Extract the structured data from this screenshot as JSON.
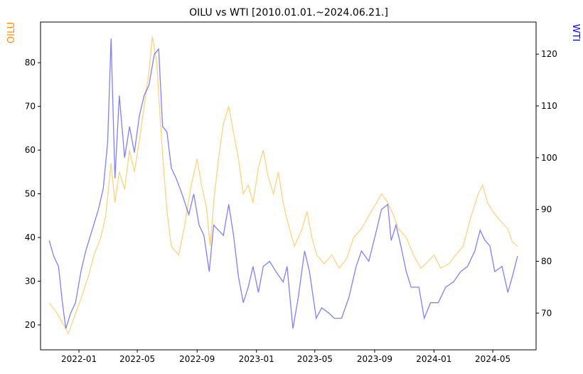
{
  "chart_data": {
    "type": "line",
    "title": "OILU vs WTI [2010.01.01.~2024.06.21.]",
    "left_axis": {
      "label": "OILU",
      "color": "#ff8c00",
      "ylim": [
        14.3,
        89.3
      ],
      "ticks": [
        20,
        30,
        40,
        50,
        60,
        70,
        80
      ]
    },
    "right_axis": {
      "label": "WTI",
      "color": "#0000ff",
      "ylim": [
        62.9,
        126.2
      ],
      "ticks": [
        70,
        80,
        90,
        100,
        110,
        120
      ]
    },
    "x_axis": {
      "xlim": [
        "2021-10-14",
        "2024-07-29"
      ],
      "ticks": [
        {
          "date": "2022-01-01",
          "label": "2022-01"
        },
        {
          "date": "2022-05-01",
          "label": "2022-05"
        },
        {
          "date": "2022-09-01",
          "label": "2022-09"
        },
        {
          "date": "2023-01-01",
          "label": "2023-01"
        },
        {
          "date": "2023-05-01",
          "label": "2023-05"
        },
        {
          "date": "2023-09-01",
          "label": "2023-09"
        },
        {
          "date": "2024-01-01",
          "label": "2024-01"
        },
        {
          "date": "2024-05-01",
          "label": "2024-05"
        }
      ]
    },
    "grid": false,
    "series": [
      {
        "name": "OILU",
        "axis": "left",
        "color": "#ffa500",
        "points": [
          [
            "2021-11-01",
            25
          ],
          [
            "2021-11-15",
            23
          ],
          [
            "2021-12-01",
            20
          ],
          [
            "2021-12-10",
            18
          ],
          [
            "2021-12-20",
            21
          ],
          [
            "2022-01-05",
            26
          ],
          [
            "2022-01-20",
            31
          ],
          [
            "2022-02-01",
            36
          ],
          [
            "2022-02-15",
            40
          ],
          [
            "2022-02-25",
            45
          ],
          [
            "2022-03-08",
            57
          ],
          [
            "2022-03-16",
            48
          ],
          [
            "2022-03-25",
            55
          ],
          [
            "2022-04-05",
            51
          ],
          [
            "2022-04-15",
            60
          ],
          [
            "2022-04-25",
            55
          ],
          [
            "2022-05-05",
            62
          ],
          [
            "2022-05-15",
            70
          ],
          [
            "2022-05-25",
            78
          ],
          [
            "2022-06-01",
            86
          ],
          [
            "2022-06-10",
            80
          ],
          [
            "2022-06-20",
            62
          ],
          [
            "2022-07-01",
            46
          ],
          [
            "2022-07-10",
            38
          ],
          [
            "2022-07-25",
            36
          ],
          [
            "2022-08-05",
            42
          ],
          [
            "2022-08-20",
            52
          ],
          [
            "2022-09-01",
            58
          ],
          [
            "2022-09-10",
            52
          ],
          [
            "2022-09-20",
            47
          ],
          [
            "2022-09-28",
            38
          ],
          [
            "2022-10-05",
            48
          ],
          [
            "2022-10-15",
            58
          ],
          [
            "2022-10-25",
            66
          ],
          [
            "2022-11-05",
            70
          ],
          [
            "2022-11-15",
            64
          ],
          [
            "2022-11-25",
            58
          ],
          [
            "2022-12-05",
            50
          ],
          [
            "2022-12-15",
            52
          ],
          [
            "2022-12-25",
            48
          ],
          [
            "2023-01-05",
            56
          ],
          [
            "2023-01-15",
            60
          ],
          [
            "2023-01-25",
            54
          ],
          [
            "2023-02-05",
            50
          ],
          [
            "2023-02-15",
            55
          ],
          [
            "2023-02-25",
            48
          ],
          [
            "2023-03-05",
            44
          ],
          [
            "2023-03-20",
            38
          ],
          [
            "2023-04-05",
            42
          ],
          [
            "2023-04-15",
            46
          ],
          [
            "2023-04-25",
            40
          ],
          [
            "2023-05-05",
            36
          ],
          [
            "2023-05-20",
            34
          ],
          [
            "2023-06-05",
            36
          ],
          [
            "2023-06-20",
            33
          ],
          [
            "2023-07-05",
            35
          ],
          [
            "2023-07-20",
            40
          ],
          [
            "2023-08-05",
            42
          ],
          [
            "2023-08-20",
            45
          ],
          [
            "2023-09-05",
            48
          ],
          [
            "2023-09-15",
            50
          ],
          [
            "2023-09-28",
            48
          ],
          [
            "2023-10-10",
            45
          ],
          [
            "2023-10-20",
            42
          ],
          [
            "2023-11-05",
            40
          ],
          [
            "2023-11-20",
            36
          ],
          [
            "2023-12-05",
            33
          ],
          [
            "2023-12-15",
            34
          ],
          [
            "2024-01-01",
            36
          ],
          [
            "2024-01-15",
            33
          ],
          [
            "2024-02-01",
            34
          ],
          [
            "2024-02-15",
            36
          ],
          [
            "2024-03-01",
            38
          ],
          [
            "2024-03-15",
            44
          ],
          [
            "2024-04-01",
            50
          ],
          [
            "2024-04-10",
            52
          ],
          [
            "2024-04-20",
            48
          ],
          [
            "2024-05-01",
            46
          ],
          [
            "2024-05-15",
            44
          ],
          [
            "2024-06-01",
            42
          ],
          [
            "2024-06-10",
            39
          ],
          [
            "2024-06-21",
            38
          ]
        ]
      },
      {
        "name": "WTI",
        "axis": "right",
        "color": "#0000ff",
        "points": [
          [
            "2021-11-01",
            84
          ],
          [
            "2021-11-10",
            81
          ],
          [
            "2021-11-20",
            79
          ],
          [
            "2021-11-28",
            72
          ],
          [
            "2021-12-05",
            67
          ],
          [
            "2021-12-15",
            70
          ],
          [
            "2021-12-25",
            72
          ],
          [
            "2022-01-05",
            78
          ],
          [
            "2022-01-15",
            82
          ],
          [
            "2022-01-28",
            86
          ],
          [
            "2022-02-10",
            90
          ],
          [
            "2022-02-20",
            94
          ],
          [
            "2022-03-01",
            103
          ],
          [
            "2022-03-08",
            123
          ],
          [
            "2022-03-16",
            96
          ],
          [
            "2022-03-25",
            112
          ],
          [
            "2022-04-05",
            100
          ],
          [
            "2022-04-15",
            106
          ],
          [
            "2022-04-25",
            101
          ],
          [
            "2022-05-05",
            108
          ],
          [
            "2022-05-15",
            112
          ],
          [
            "2022-05-25",
            114
          ],
          [
            "2022-06-05",
            120
          ],
          [
            "2022-06-14",
            121
          ],
          [
            "2022-06-22",
            106
          ],
          [
            "2022-07-01",
            105
          ],
          [
            "2022-07-10",
            98
          ],
          [
            "2022-07-20",
            96
          ],
          [
            "2022-08-01",
            93
          ],
          [
            "2022-08-15",
            89
          ],
          [
            "2022-08-25",
            93
          ],
          [
            "2022-09-05",
            87
          ],
          [
            "2022-09-15",
            85
          ],
          [
            "2022-09-26",
            78
          ],
          [
            "2022-10-05",
            87
          ],
          [
            "2022-10-15",
            86
          ],
          [
            "2022-10-25",
            85
          ],
          [
            "2022-11-05",
            91
          ],
          [
            "2022-11-15",
            85
          ],
          [
            "2022-11-25",
            77
          ],
          [
            "2022-12-05",
            72
          ],
          [
            "2022-12-15",
            75
          ],
          [
            "2022-12-25",
            79
          ],
          [
            "2023-01-05",
            74
          ],
          [
            "2023-01-15",
            79
          ],
          [
            "2023-01-28",
            80
          ],
          [
            "2023-02-10",
            78
          ],
          [
            "2023-02-25",
            76
          ],
          [
            "2023-03-05",
            79
          ],
          [
            "2023-03-17",
            67
          ],
          [
            "2023-03-28",
            73
          ],
          [
            "2023-04-10",
            82
          ],
          [
            "2023-04-20",
            78
          ],
          [
            "2023-05-04",
            69
          ],
          [
            "2023-05-15",
            71
          ],
          [
            "2023-05-30",
            70
          ],
          [
            "2023-06-10",
            69
          ],
          [
            "2023-06-25",
            69
          ],
          [
            "2023-07-10",
            73
          ],
          [
            "2023-07-25",
            79
          ],
          [
            "2023-08-05",
            82
          ],
          [
            "2023-08-20",
            80
          ],
          [
            "2023-09-05",
            86
          ],
          [
            "2023-09-15",
            90
          ],
          [
            "2023-09-28",
            91
          ],
          [
            "2023-10-05",
            84
          ],
          [
            "2023-10-15",
            87
          ],
          [
            "2023-10-25",
            83
          ],
          [
            "2023-11-05",
            78
          ],
          [
            "2023-11-15",
            75
          ],
          [
            "2023-12-01",
            75
          ],
          [
            "2023-12-12",
            69
          ],
          [
            "2023-12-25",
            72
          ],
          [
            "2024-01-10",
            72
          ],
          [
            "2024-01-25",
            75
          ],
          [
            "2024-02-10",
            76
          ],
          [
            "2024-02-25",
            78
          ],
          [
            "2024-03-10",
            79
          ],
          [
            "2024-03-25",
            82
          ],
          [
            "2024-04-05",
            86
          ],
          [
            "2024-04-15",
            84
          ],
          [
            "2024-04-25",
            83
          ],
          [
            "2024-05-05",
            78
          ],
          [
            "2024-05-20",
            79
          ],
          [
            "2024-06-01",
            74
          ],
          [
            "2024-06-10",
            77
          ],
          [
            "2024-06-21",
            81
          ]
        ]
      }
    ]
  }
}
